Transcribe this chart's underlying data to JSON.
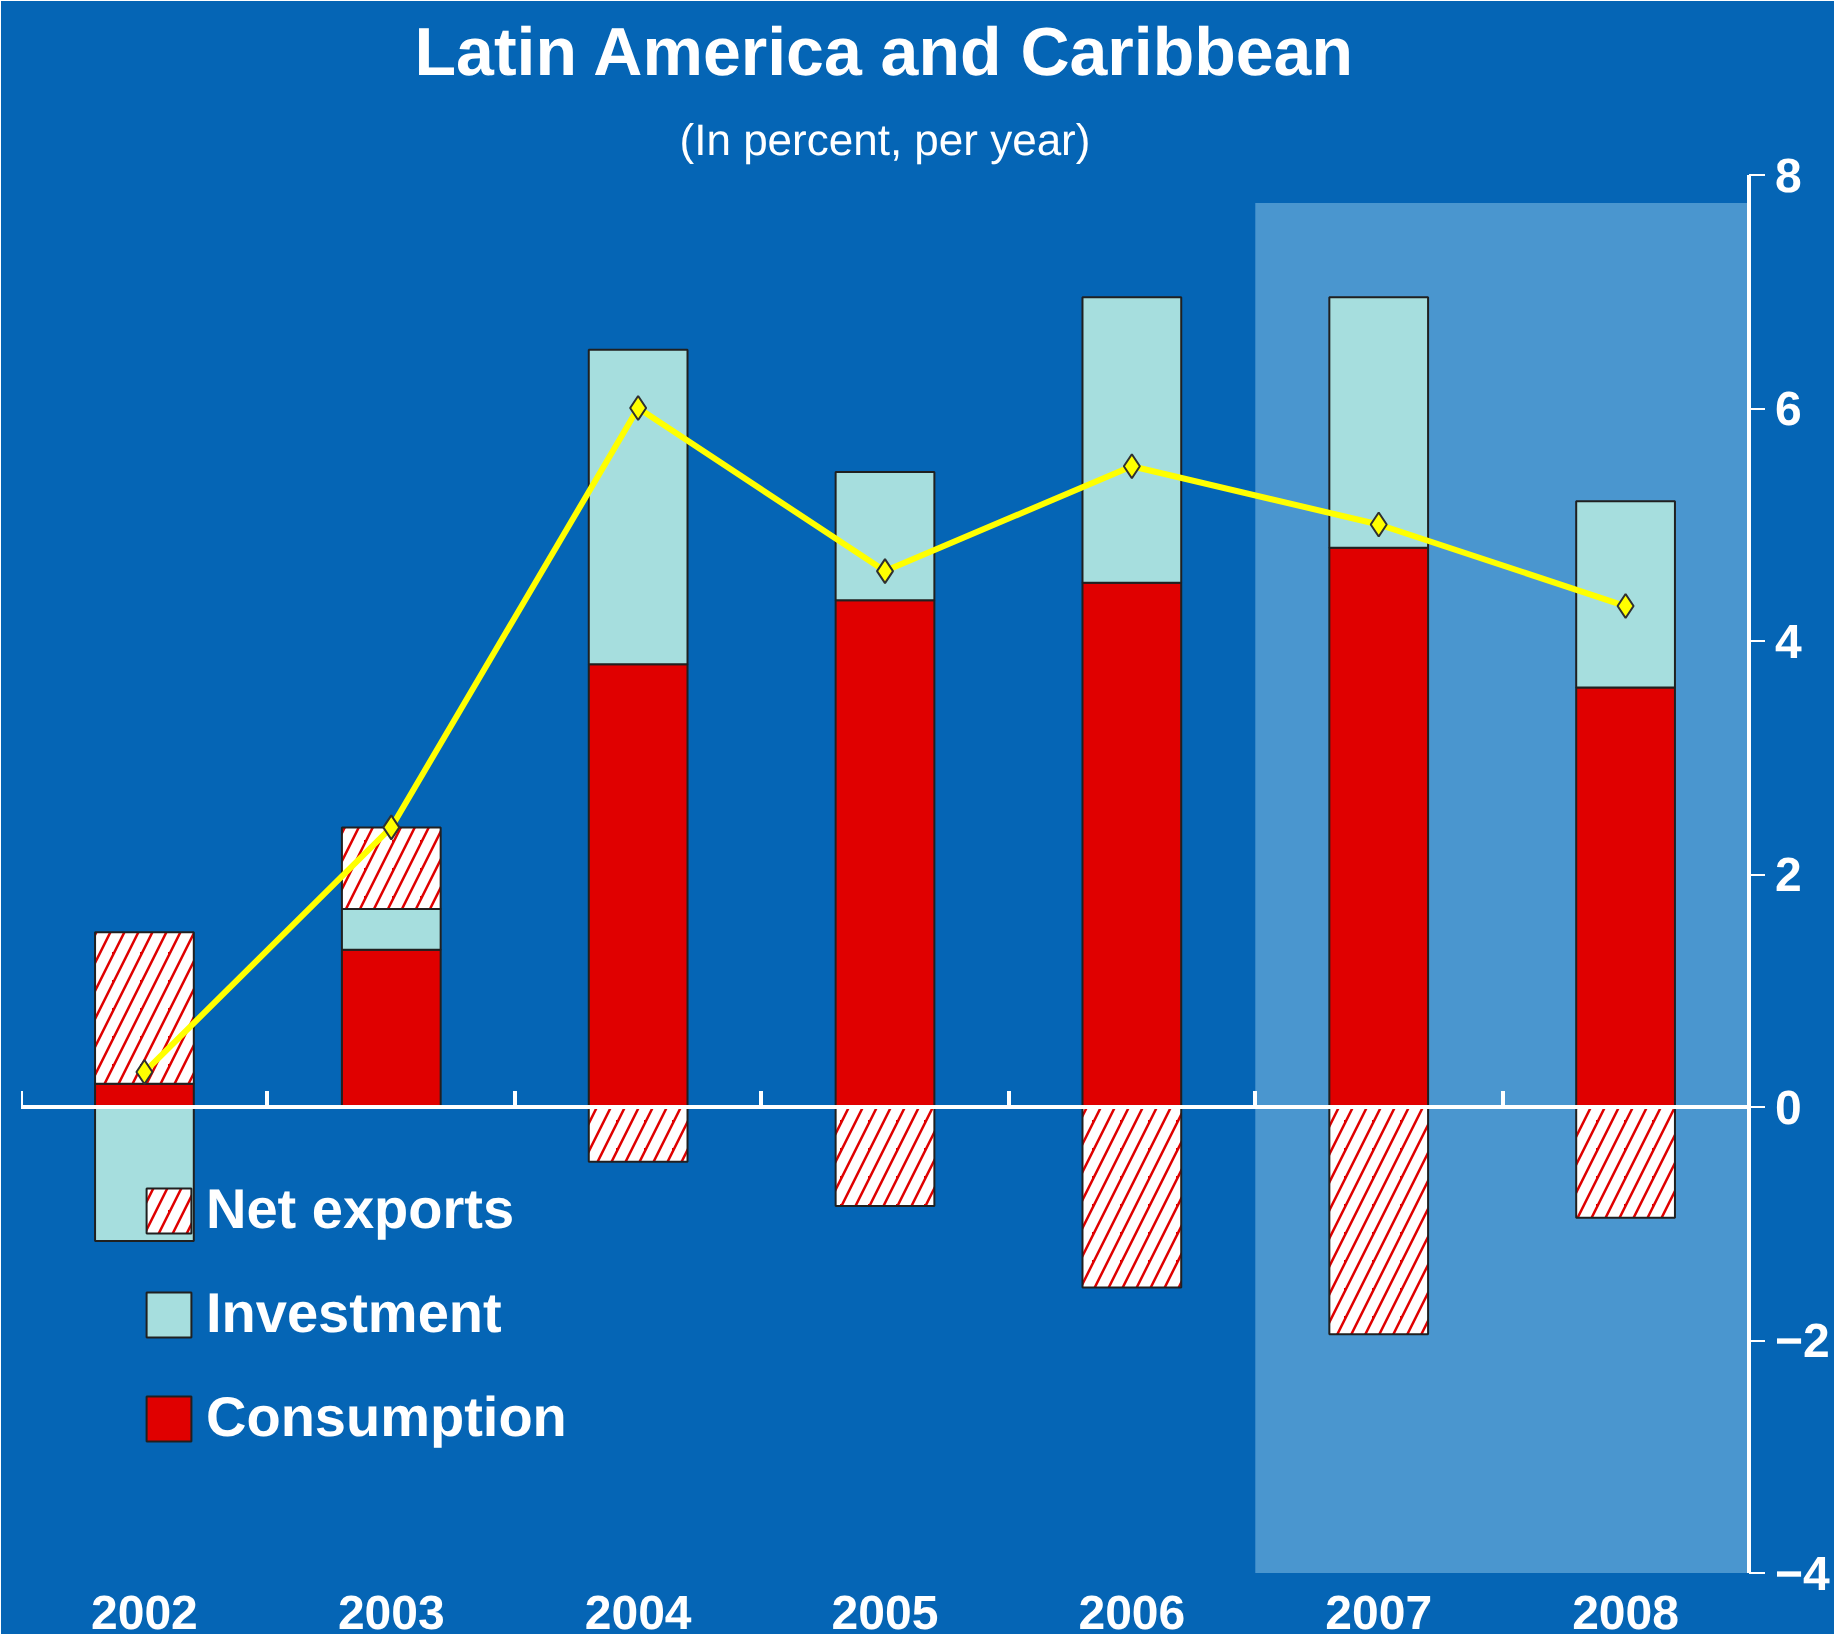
{
  "chart_data": {
    "type": "bar",
    "stacked": true,
    "title": "Latin America and Caribbean",
    "subtitle": "(In percent, per year)",
    "categories": [
      "2002",
      "2003",
      "2004",
      "2005",
      "2006",
      "2007",
      "2008"
    ],
    "series": [
      {
        "name": "Consumption",
        "color": "#e00000",
        "values": [
          0.2,
          1.35,
          3.8,
          4.35,
          4.5,
          4.8,
          3.6
        ]
      },
      {
        "name": "Investment",
        "color": "#a6dede",
        "values": [
          -1.15,
          0.35,
          2.7,
          1.1,
          2.45,
          2.15,
          1.6
        ]
      },
      {
        "name": "Net exports",
        "color": "#e00000",
        "values": [
          1.3,
          0.7,
          -0.47,
          -0.85,
          -1.55,
          -1.95,
          -0.95
        ]
      },
      {
        "type": "line",
        "color": "#ffff00",
        "marker": "diamond",
        "values": [
          0.3,
          2.4,
          6.0,
          4.6,
          5.5,
          5.0,
          4.3
        ]
      }
    ],
    "ylim": [
      -4,
      8
    ],
    "yticks": [
      -4,
      -2,
      0,
      2,
      4,
      6,
      8
    ],
    "legend": "bottom left",
    "bands": [
      {
        "axis": "x",
        "from": "2007",
        "to": "2008",
        "color": "#9fd3f0"
      }
    ]
  }
}
